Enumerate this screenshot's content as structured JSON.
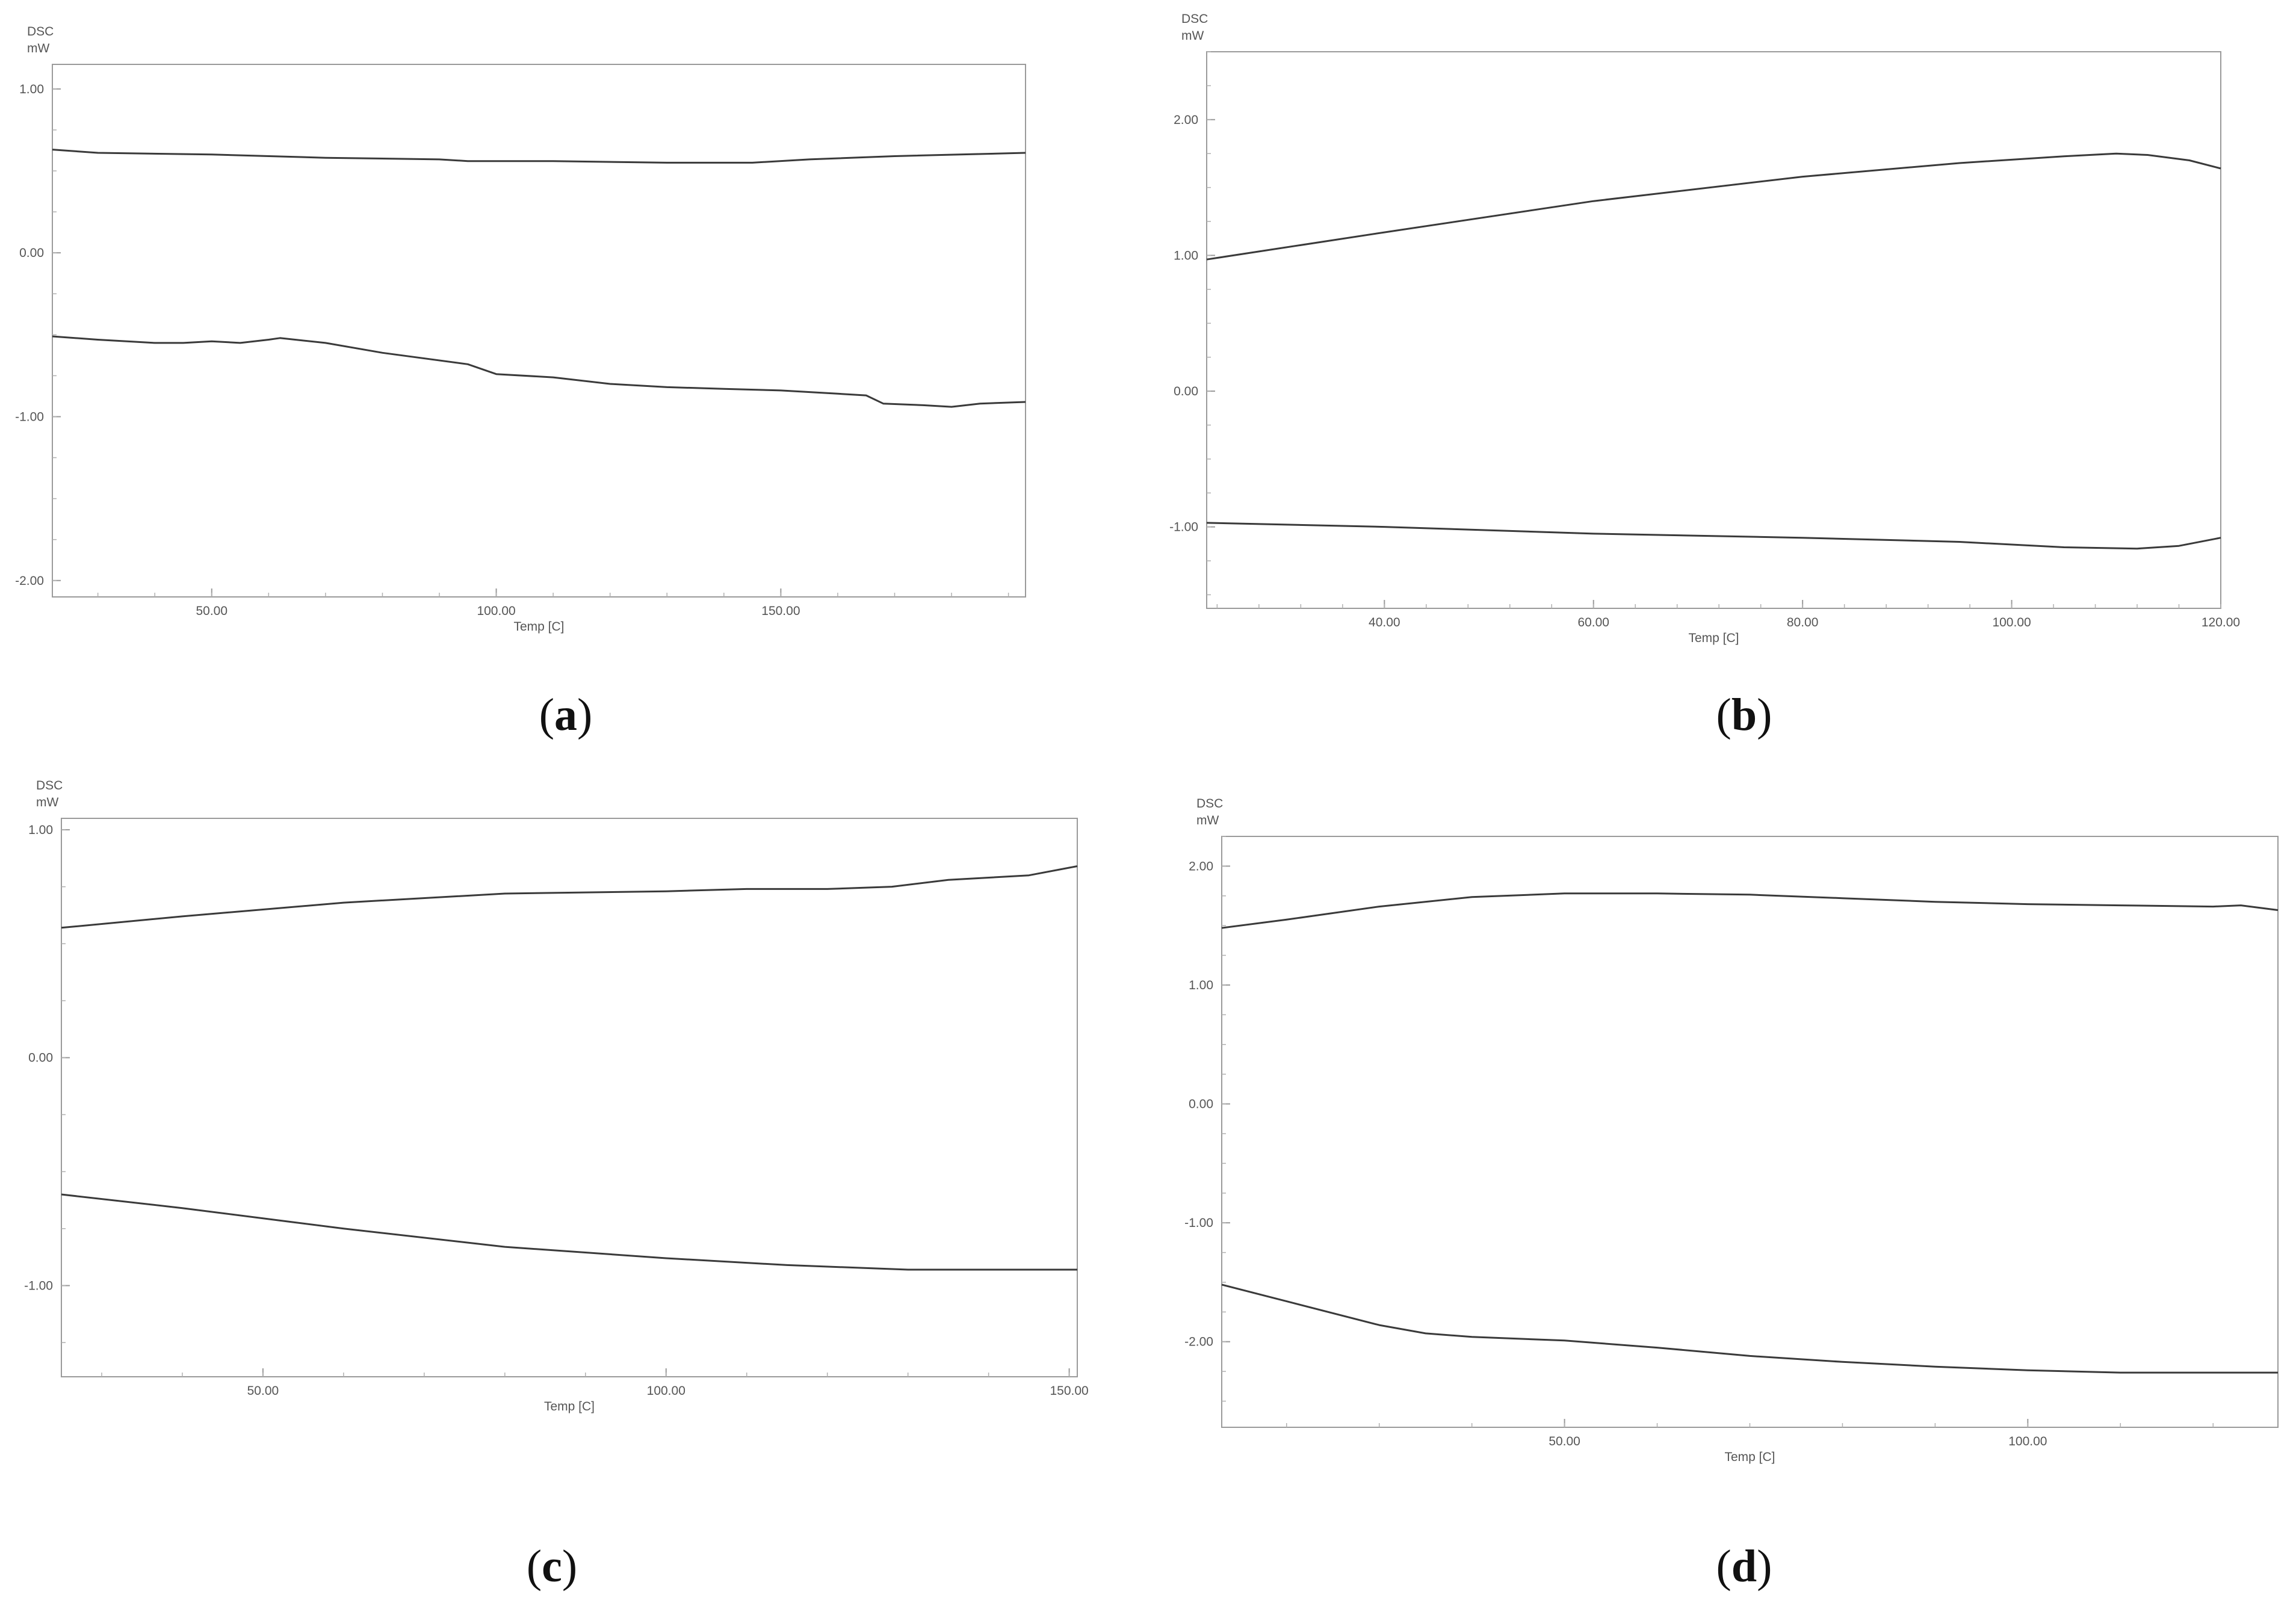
{
  "chart_data": [
    {
      "type": "line",
      "caption": "a",
      "ylabel": "DSC",
      "yunit": "mW",
      "xlabel": "Temp  [C]",
      "xlim": [
        22,
        193
      ],
      "ylim": [
        -2.1,
        1.15
      ],
      "xticks": [
        {
          "v": 50,
          "l": "50.00"
        },
        {
          "v": 100,
          "l": "100.00"
        },
        {
          "v": 150,
          "l": "150.00"
        }
      ],
      "yticks": [
        {
          "v": 1.0,
          "l": "1.00"
        },
        {
          "v": 0.0,
          "l": "0.00"
        },
        {
          "v": -1.0,
          "l": "-1.00"
        },
        {
          "v": -2.0,
          "l": "-2.00"
        }
      ],
      "series": [
        {
          "x": [
            22,
            30,
            50,
            70,
            90,
            95,
            110,
            130,
            145,
            155,
            170,
            193
          ],
          "y": [
            0.63,
            0.61,
            0.6,
            0.58,
            0.57,
            0.56,
            0.56,
            0.55,
            0.55,
            0.57,
            0.59,
            0.61
          ]
        },
        {
          "x": [
            22,
            30,
            40,
            45,
            50,
            55,
            60,
            62,
            70,
            80,
            95,
            100,
            110,
            120,
            130,
            140,
            150,
            160,
            165,
            168,
            175,
            180,
            185,
            193
          ],
          "y": [
            -0.51,
            -0.53,
            -0.55,
            -0.55,
            -0.54,
            -0.55,
            -0.53,
            -0.52,
            -0.55,
            -0.61,
            -0.68,
            -0.74,
            -0.76,
            -0.8,
            -0.82,
            -0.83,
            -0.84,
            -0.86,
            -0.87,
            -0.92,
            -0.93,
            -0.94,
            -0.92,
            -0.91
          ]
        }
      ]
    },
    {
      "type": "line",
      "caption": "b",
      "ylabel": "DSC",
      "yunit": "mW",
      "xlabel": "Temp  [C]",
      "xlim": [
        23,
        120
      ],
      "ylim": [
        -1.6,
        2.5
      ],
      "xticks": [
        {
          "v": 40,
          "l": "40.00"
        },
        {
          "v": 60,
          "l": "60.00"
        },
        {
          "v": 80,
          "l": "80.00"
        },
        {
          "v": 100,
          "l": "100.00"
        },
        {
          "v": 120,
          "l": "120.00"
        }
      ],
      "yticks": [
        {
          "v": 2.0,
          "l": "2.00"
        },
        {
          "v": 1.0,
          "l": "1.00"
        },
        {
          "v": 0.0,
          "l": "0.00"
        },
        {
          "v": -1.0,
          "l": "-1.00"
        }
      ],
      "series": [
        {
          "x": [
            23,
            40,
            60,
            80,
            95,
            105,
            110,
            113,
            117,
            120
          ],
          "y": [
            0.97,
            1.17,
            1.4,
            1.58,
            1.68,
            1.73,
            1.75,
            1.74,
            1.7,
            1.64
          ]
        },
        {
          "x": [
            23,
            40,
            60,
            80,
            95,
            105,
            112,
            116,
            120
          ],
          "y": [
            -0.97,
            -1.0,
            -1.05,
            -1.08,
            -1.11,
            -1.15,
            -1.16,
            -1.14,
            -1.08
          ]
        }
      ]
    },
    {
      "type": "line",
      "caption": "c",
      "ylabel": "DSC",
      "yunit": "mW",
      "xlabel": "Temp  [C]",
      "xlim": [
        25,
        151
      ],
      "ylim": [
        -1.4,
        1.05
      ],
      "xticks": [
        {
          "v": 50,
          "l": "50.00"
        },
        {
          "v": 100,
          "l": "100.00"
        },
        {
          "v": 150,
          "l": "150.00"
        }
      ],
      "yticks": [
        {
          "v": 1.0,
          "l": "1.00"
        },
        {
          "v": 0.0,
          "l": "0.00"
        },
        {
          "v": -1.0,
          "l": "-1.00"
        }
      ],
      "series": [
        {
          "x": [
            25,
            40,
            60,
            80,
            100,
            110,
            120,
            128,
            135,
            145,
            151
          ],
          "y": [
            0.57,
            0.62,
            0.68,
            0.72,
            0.73,
            0.74,
            0.74,
            0.75,
            0.78,
            0.8,
            0.84
          ]
        },
        {
          "x": [
            25,
            40,
            60,
            80,
            100,
            115,
            130,
            151
          ],
          "y": [
            -0.6,
            -0.66,
            -0.75,
            -0.83,
            -0.88,
            -0.91,
            -0.93,
            -0.93
          ]
        }
      ]
    },
    {
      "type": "line",
      "caption": "d",
      "ylabel": "DSC",
      "yunit": "mW",
      "xlabel": "Temp  [C]",
      "xlim": [
        13,
        127
      ],
      "ylim": [
        -2.72,
        2.25
      ],
      "xticks": [
        {
          "v": 50,
          "l": "50.00"
        },
        {
          "v": 100,
          "l": "100.00"
        }
      ],
      "yticks": [
        {
          "v": 2.0,
          "l": "2.00"
        },
        {
          "v": 1.0,
          "l": "1.00"
        },
        {
          "v": 0.0,
          "l": "0.00"
        },
        {
          "v": -1.0,
          "l": "-1.00"
        },
        {
          "v": -2.0,
          "l": "-2.00"
        }
      ],
      "series": [
        {
          "x": [
            13,
            20,
            30,
            40,
            50,
            60,
            70,
            80,
            90,
            100,
            110,
            120,
            123,
            127
          ],
          "y": [
            1.48,
            1.55,
            1.66,
            1.74,
            1.77,
            1.77,
            1.76,
            1.73,
            1.7,
            1.68,
            1.67,
            1.66,
            1.67,
            1.63
          ]
        },
        {
          "x": [
            13,
            20,
            30,
            35,
            40,
            50,
            60,
            70,
            80,
            90,
            100,
            110,
            127
          ],
          "y": [
            -1.52,
            -1.66,
            -1.86,
            -1.93,
            -1.96,
            -1.99,
            -2.05,
            -2.12,
            -2.17,
            -2.21,
            -2.24,
            -2.26,
            -2.26
          ]
        }
      ]
    }
  ]
}
